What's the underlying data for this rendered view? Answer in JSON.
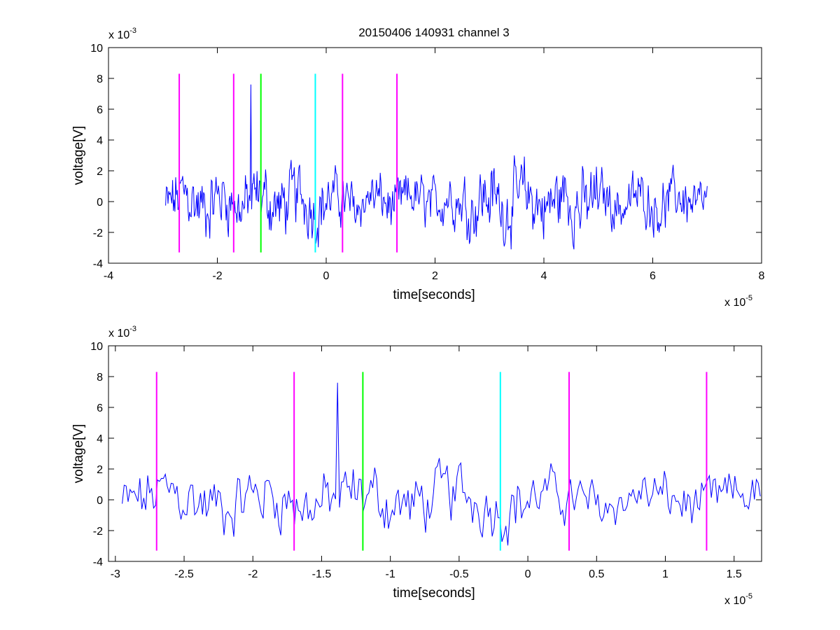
{
  "title": "20150406 140931 channel 3",
  "colors": {
    "signal": "#0000ff",
    "magenta": "#ff00ff",
    "green": "#00ff00",
    "cyan": "#00ffff",
    "axes": "#000000"
  },
  "chart_data": [
    {
      "type": "line",
      "title": "20150406 140931 channel 3",
      "xlabel": "time[seconds]",
      "ylabel": "voltage[V]",
      "x_exponent_label": "x 10",
      "x_exponent": "-5",
      "y_exponent_label": "x 10",
      "y_exponent": "-3",
      "xlim": [
        -4,
        8
      ],
      "ylim": [
        -4,
        10
      ],
      "xticks": [
        -4,
        -2,
        0,
        2,
        4,
        6,
        8
      ],
      "xtick_labels": [
        "-4",
        "-2",
        "0",
        "2",
        "4",
        "6",
        "8"
      ],
      "yticks": [
        -4,
        -2,
        0,
        2,
        4,
        6,
        8,
        10
      ],
      "ytick_labels": [
        "-4",
        "-2",
        "0",
        "2",
        "4",
        "6",
        "8",
        "10"
      ],
      "grid": false,
      "series": [
        {
          "color": "#0000ff",
          "x_range": [
            -2.95,
            7.0
          ],
          "y_range": [
            -3.1,
            7.6
          ],
          "spike_at": -1.38,
          "spike_value": 7.6
        }
      ],
      "markers": [
        {
          "x": -2.7,
          "color": "#ff00ff",
          "y_range": [
            -3.3,
            8.3
          ]
        },
        {
          "x": -1.7,
          "color": "#ff00ff",
          "y_range": [
            -3.3,
            8.3
          ]
        },
        {
          "x": -1.2,
          "color": "#00ff00",
          "y_range": [
            -3.3,
            8.3
          ]
        },
        {
          "x": -0.2,
          "color": "#00ffff",
          "y_range": [
            -3.3,
            8.3
          ]
        },
        {
          "x": 0.3,
          "color": "#ff00ff",
          "y_range": [
            -3.3,
            8.3
          ]
        },
        {
          "x": 1.3,
          "color": "#ff00ff",
          "y_range": [
            -3.3,
            8.3
          ]
        }
      ]
    },
    {
      "type": "line",
      "title": "",
      "xlabel": "time[seconds]",
      "ylabel": "voltage[V]",
      "x_exponent_label": "x 10",
      "x_exponent": "-5",
      "y_exponent_label": "x 10",
      "y_exponent": "-3",
      "xlim": [
        -3.05,
        1.7
      ],
      "ylim": [
        -4,
        10
      ],
      "xticks": [
        -3,
        -2.5,
        -2,
        -1.5,
        -1,
        -0.5,
        0,
        0.5,
        1,
        1.5
      ],
      "xtick_labels": [
        "-3",
        "-2.5",
        "-2",
        "-1.5",
        "-1",
        "-0.5",
        "0",
        "0.5",
        "1",
        "1.5"
      ],
      "yticks": [
        -4,
        -2,
        0,
        2,
        4,
        6,
        8,
        10
      ],
      "ytick_labels": [
        "-4",
        "-2",
        "0",
        "2",
        "4",
        "6",
        "8",
        "10"
      ],
      "grid": false,
      "series": [
        {
          "color": "#0000ff",
          "x_range": [
            -2.95,
            1.7
          ],
          "y_range": [
            -3.1,
            7.6
          ],
          "spike_at": -1.38,
          "spike_value": 7.6
        }
      ],
      "markers": [
        {
          "x": -2.7,
          "color": "#ff00ff",
          "y_range": [
            -3.3,
            8.3
          ]
        },
        {
          "x": -1.7,
          "color": "#ff00ff",
          "y_range": [
            -3.3,
            8.3
          ]
        },
        {
          "x": -1.2,
          "color": "#00ff00",
          "y_range": [
            -3.3,
            8.3
          ]
        },
        {
          "x": -0.2,
          "color": "#00ffff",
          "y_range": [
            -3.3,
            8.3
          ]
        },
        {
          "x": 0.3,
          "color": "#ff00ff",
          "y_range": [
            -3.3,
            8.3
          ]
        },
        {
          "x": 1.3,
          "color": "#ff00ff",
          "y_range": [
            -3.3,
            8.3
          ]
        }
      ]
    }
  ]
}
